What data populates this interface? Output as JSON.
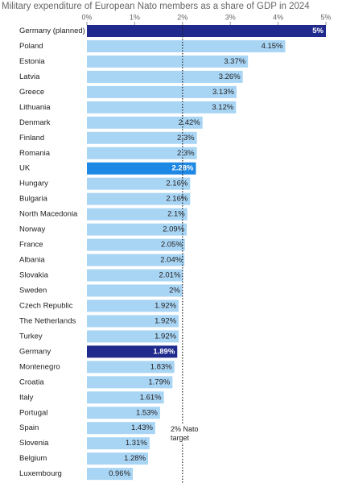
{
  "chart_data": {
    "type": "bar",
    "orientation": "horizontal",
    "title": "Military expenditure of European Nato members as a share of GDP in 2024",
    "categories": [
      "Germany (planned)",
      "Poland",
      "Estonia",
      "Latvia",
      "Greece",
      "Lithuania",
      "Denmark",
      "Finland",
      "Romania",
      "UK",
      "Hungary",
      "Bulgaria",
      "North Macedonia",
      "Norway",
      "France",
      "Albania",
      "Slovakia",
      "Sweden",
      "Czech Republic",
      "The Netherlands",
      "Turkey",
      "Germany",
      "Montenegro",
      "Croatia",
      "Italy",
      "Portugal",
      "Spain",
      "Slovenia",
      "Belgium",
      "Luxembourg"
    ],
    "values": [
      5,
      4.15,
      3.37,
      3.26,
      3.13,
      3.12,
      2.42,
      2.3,
      2.3,
      2.28,
      2.16,
      2.16,
      2.1,
      2.09,
      2.05,
      2.04,
      2.01,
      2,
      1.92,
      1.92,
      1.92,
      1.89,
      1.83,
      1.79,
      1.61,
      1.53,
      1.43,
      1.31,
      1.28,
      0.96
    ],
    "value_labels": [
      "5%",
      "4.15%",
      "3.37%",
      "3.26%",
      "3.13%",
      "3.12%",
      "2.42%",
      "2.3%",
      "2.3%",
      "2.28%",
      "2.16%",
      "2.16%",
      "2.1%",
      "2.09%",
      "2.05%",
      "2.04%",
      "2.01%",
      "2%",
      "1.92%",
      "1.92%",
      "1.92%",
      "1.89%",
      "1.83%",
      "1.79%",
      "1.61%",
      "1.53%",
      "1.43%",
      "1.31%",
      "1.28%",
      "0.96%"
    ],
    "colors": [
      "#1f2a8c",
      "#a9d5f5",
      "#a9d5f5",
      "#a9d5f5",
      "#a9d5f5",
      "#a9d5f5",
      "#a9d5f5",
      "#a9d5f5",
      "#a9d5f5",
      "#1e88e5",
      "#a9d5f5",
      "#a9d5f5",
      "#a9d5f5",
      "#a9d5f5",
      "#a9d5f5",
      "#a9d5f5",
      "#a9d5f5",
      "#a9d5f5",
      "#a9d5f5",
      "#a9d5f5",
      "#a9d5f5",
      "#1f2a8c",
      "#a9d5f5",
      "#a9d5f5",
      "#a9d5f5",
      "#a9d5f5",
      "#a9d5f5",
      "#a9d5f5",
      "#a9d5f5",
      "#a9d5f5"
    ],
    "xlim": [
      0,
      5
    ],
    "xticks": [
      {
        "value": 0,
        "label": "0%"
      },
      {
        "value": 1,
        "label": "1%"
      },
      {
        "value": 2,
        "label": "2%"
      },
      {
        "value": 3,
        "label": "3%"
      },
      {
        "value": 4,
        "label": "4%"
      },
      {
        "value": 5,
        "label": "5%"
      }
    ],
    "target_line": 2,
    "annotation": "2% Nato target"
  }
}
